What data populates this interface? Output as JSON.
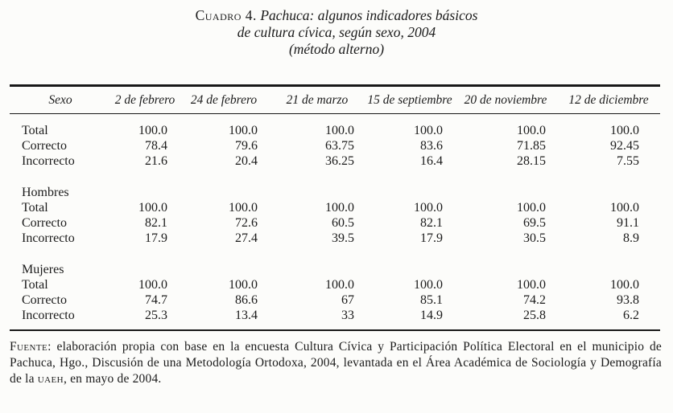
{
  "page": {
    "title": {
      "label": "Cuadro 4.",
      "line1_rest": " Pachuca: algunos indicadores básicos",
      "line2": "de cultura cívica, según sexo, 2004",
      "line3": "(método alterno)"
    },
    "table": {
      "columns": [
        "Sexo",
        "2 de febrero",
        "24 de febrero",
        "21 de marzo",
        "15 de septiembre",
        "20 de noviembre",
        "12 de diciembre"
      ],
      "sections": [
        {
          "header": null,
          "rows": [
            {
              "label": "Total",
              "values": [
                "100.0",
                "100.0",
                "100.0",
                "100.0",
                "100.0",
                "100.0"
              ]
            },
            {
              "label": "Correcto",
              "values": [
                "78.4",
                "79.6",
                "63.75",
                "83.6",
                "71.85",
                "92.45"
              ]
            },
            {
              "label": "Incorrecto",
              "values": [
                "21.6",
                "20.4",
                "36.25",
                "16.4",
                "28.15",
                "7.55"
              ]
            }
          ]
        },
        {
          "header": "Hombres",
          "rows": [
            {
              "label": "Total",
              "values": [
                "100.0",
                "100.0",
                "100.0",
                "100.0",
                "100.0",
                "100.0"
              ]
            },
            {
              "label": "Correcto",
              "values": [
                "82.1",
                "72.6",
                "60.5",
                "82.1",
                "69.5",
                "91.1"
              ]
            },
            {
              "label": "Incorrecto",
              "values": [
                "17.9",
                "27.4",
                "39.5",
                "17.9",
                "30.5",
                "8.9"
              ]
            }
          ]
        },
        {
          "header": "Mujeres",
          "rows": [
            {
              "label": "Total",
              "values": [
                "100.0",
                "100.0",
                "100.0",
                "100.0",
                "100.0",
                "100.0"
              ]
            },
            {
              "label": "Correcto",
              "values": [
                "74.7",
                "86.6",
                "67",
                "85.1",
                "74.2",
                "93.8"
              ]
            },
            {
              "label": "Incorrecto",
              "values": [
                "25.3",
                "13.4",
                "33",
                "14.9",
                "25.8",
                "6.2"
              ]
            }
          ]
        }
      ]
    },
    "source_note": {
      "prefix": "Fuente:",
      "text_before_uaeh": " elaboración propia con base en la encuesta Cultura Cívica y Participación Política Electoral en el municipio de Pachuca, Hgo., Discusión de una Metodología Ortodoxa, 2004, levantada en el Área Académica de Sociología y Demografía de la ",
      "uaeh": "uaeh",
      "text_after_uaeh": ", en mayo de 2004."
    }
  }
}
